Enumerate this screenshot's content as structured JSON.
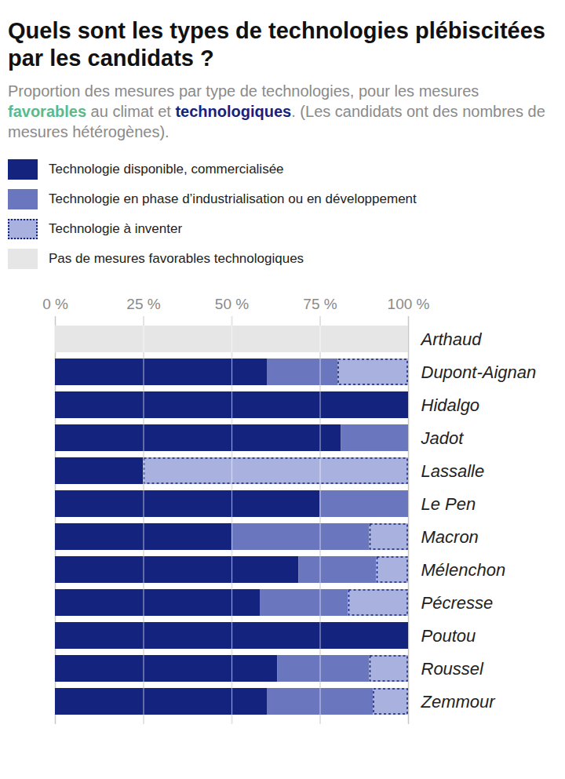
{
  "chart_data": {
    "type": "bar",
    "orientation": "horizontal",
    "stacked": true,
    "title": "Quels sont les types de technologies plébiscitées par les candidats ?",
    "subtitle": [
      {
        "text": "Proportion des mesures par type de technologies, pour les mesures "
      },
      {
        "text": "favorables",
        "color": "#5cb98b"
      },
      {
        "text": " au climat et "
      },
      {
        "text": "technologiques",
        "color": "#13237e"
      },
      {
        "text": ". (Les candidats ont des nombres de mesures hétérogènes)."
      }
    ],
    "legend": "top",
    "grid": true,
    "xlim": [
      0,
      100
    ],
    "xticks": [
      {
        "value": 0,
        "label": "0 %"
      },
      {
        "value": 25,
        "label": "25 %"
      },
      {
        "value": 50,
        "label": "50 %"
      },
      {
        "value": 75,
        "label": "75 %"
      },
      {
        "value": 100,
        "label": "100 %"
      }
    ],
    "categories": [
      "Arthaud",
      "Dupont-Aignan",
      "Hidalgo",
      "Jadot",
      "Lassalle",
      "Le Pen",
      "Macron",
      "Mélenchon",
      "Pécresse",
      "Poutou",
      "Roussel",
      "Zemmour"
    ],
    "series": [
      {
        "name": "Technologie disponible, commercialisée",
        "color": "#13237e",
        "values": [
          0,
          60,
          100,
          81,
          25,
          75,
          50,
          69,
          58,
          100,
          63,
          60
        ]
      },
      {
        "name": "Technologie en phase d’industrialisation ou en développement",
        "color": "#6a77bf",
        "values": [
          0,
          20,
          0,
          19,
          0,
          25,
          39,
          22,
          25,
          0,
          26,
          30
        ]
      },
      {
        "name": "Technologie à inventer",
        "color": "#a9b1de",
        "line_style": "dotted",
        "values": [
          0,
          20,
          0,
          0,
          75,
          0,
          11,
          9,
          17,
          0,
          11,
          10
        ]
      },
      {
        "name": "Pas de mesures favorables technologiques",
        "color": "#e6e6e6",
        "values": [
          100,
          0,
          0,
          0,
          0,
          0,
          0,
          0,
          0,
          0,
          0,
          0
        ]
      }
    ]
  }
}
